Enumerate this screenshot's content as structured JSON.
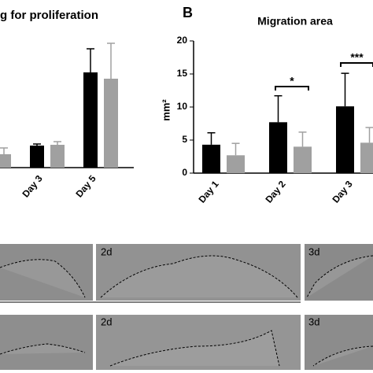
{
  "chart_data": [
    {
      "type": "bar",
      "title": "g for proliferation",
      "categories": [
        null,
        "Day 3",
        "Day 5"
      ],
      "series": [
        {
          "color": "#000000",
          "values": [
            null,
            28,
            121
          ],
          "errors": [
            null,
            2,
            30
          ]
        },
        {
          "color": "#a0a0a0",
          "values": [
            17,
            29,
            113
          ],
          "errors": [
            8,
            4,
            45
          ]
        }
      ],
      "ylim": [
        0,
        160
      ]
    },
    {
      "type": "bar",
      "panel": "B",
      "title": "Migration area",
      "ylabel": "mm²",
      "categories": [
        "Day 1",
        "Day 2",
        "Day 3"
      ],
      "series": [
        {
          "color": "#000000",
          "values": [
            4.3,
            7.7,
            10.1
          ],
          "errors": [
            1.8,
            4.0,
            5.0
          ]
        },
        {
          "color": "#a0a0a0",
          "values": [
            2.7,
            4.0,
            4.6
          ],
          "errors": [
            1.8,
            2.2,
            2.3
          ]
        }
      ],
      "ylim": [
        0,
        20
      ],
      "yticks": [
        0,
        5,
        10,
        15,
        20
      ],
      "annotations": [
        "*",
        "***"
      ]
    }
  ],
  "images": [
    "2d",
    "3d",
    "2d",
    "3d"
  ]
}
